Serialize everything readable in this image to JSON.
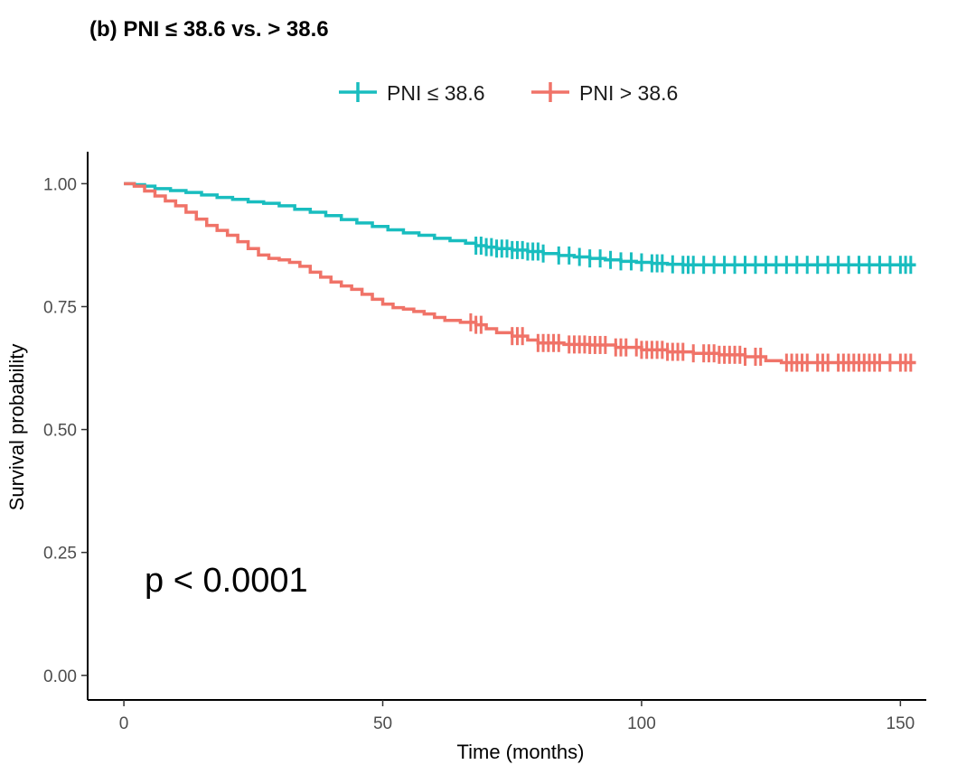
{
  "chart_data": {
    "type": "line",
    "title": "(b) PNI ≤ 38.6 vs. > 38.6",
    "xlabel": "Time (months)",
    "ylabel": "Survival probability",
    "xlim": [
      -7,
      155
    ],
    "ylim": [
      -0.05,
      1.065
    ],
    "x_ticks": [
      "0",
      "50",
      "100",
      "150"
    ],
    "x_tick_values": [
      0,
      50,
      100,
      150
    ],
    "y_ticks": [
      "0.00",
      "0.25",
      "0.50",
      "0.75",
      "1.00"
    ],
    "y_tick_values": [
      0,
      0.25,
      0.5,
      0.75,
      1.0
    ],
    "grid": false,
    "legend_position": "top",
    "annotation": "p < 0.0001",
    "series": [
      {
        "name": "PNI ≤ 38.6",
        "color": "#19BDBF",
        "step": [
          [
            0,
            1.0
          ],
          [
            2,
            0.998
          ],
          [
            4,
            0.995
          ],
          [
            6,
            0.99
          ],
          [
            9,
            0.986
          ],
          [
            12,
            0.982
          ],
          [
            15,
            0.977
          ],
          [
            18,
            0.972
          ],
          [
            21,
            0.968
          ],
          [
            24,
            0.963
          ],
          [
            27,
            0.96
          ],
          [
            30,
            0.955
          ],
          [
            33,
            0.948
          ],
          [
            36,
            0.942
          ],
          [
            39,
            0.935
          ],
          [
            42,
            0.927
          ],
          [
            45,
            0.92
          ],
          [
            48,
            0.913
          ],
          [
            51,
            0.906
          ],
          [
            54,
            0.9
          ],
          [
            57,
            0.895
          ],
          [
            60,
            0.889
          ],
          [
            63,
            0.884
          ],
          [
            66,
            0.879
          ],
          [
            68,
            0.874
          ],
          [
            70,
            0.871
          ],
          [
            72,
            0.868
          ],
          [
            75,
            0.865
          ],
          [
            78,
            0.862
          ],
          [
            81,
            0.858
          ],
          [
            84,
            0.854
          ],
          [
            87,
            0.851
          ],
          [
            90,
            0.848
          ],
          [
            93,
            0.845
          ],
          [
            96,
            0.842
          ],
          [
            99,
            0.84
          ],
          [
            102,
            0.838
          ],
          [
            105,
            0.836
          ],
          [
            108,
            0.835
          ],
          [
            112,
            0.835
          ],
          [
            153,
            0.835
          ]
        ],
        "censors": [
          68,
          69,
          70,
          71,
          72,
          73,
          74,
          75,
          76,
          77,
          78,
          79,
          80,
          81,
          84,
          86,
          88,
          90,
          92,
          94,
          96,
          98,
          100,
          102,
          103,
          104,
          106,
          108,
          109,
          110,
          112,
          114,
          116,
          118,
          120,
          122,
          124,
          126,
          128,
          130,
          132,
          134,
          136,
          138,
          140,
          142,
          144,
          146,
          148,
          150,
          151,
          152
        ]
      },
      {
        "name": "PNI > 38.6",
        "color": "#F07368",
        "step": [
          [
            0,
            1.0
          ],
          [
            2,
            0.995
          ],
          [
            4,
            0.985
          ],
          [
            6,
            0.975
          ],
          [
            8,
            0.965
          ],
          [
            10,
            0.955
          ],
          [
            12,
            0.942
          ],
          [
            14,
            0.928
          ],
          [
            16,
            0.915
          ],
          [
            18,
            0.905
          ],
          [
            20,
            0.895
          ],
          [
            22,
            0.882
          ],
          [
            24,
            0.868
          ],
          [
            26,
            0.855
          ],
          [
            28,
            0.848
          ],
          [
            30,
            0.845
          ],
          [
            32,
            0.84
          ],
          [
            34,
            0.832
          ],
          [
            36,
            0.82
          ],
          [
            38,
            0.81
          ],
          [
            40,
            0.8
          ],
          [
            42,
            0.792
          ],
          [
            44,
            0.785
          ],
          [
            46,
            0.775
          ],
          [
            48,
            0.765
          ],
          [
            50,
            0.755
          ],
          [
            52,
            0.748
          ],
          [
            54,
            0.745
          ],
          [
            56,
            0.74
          ],
          [
            58,
            0.735
          ],
          [
            60,
            0.728
          ],
          [
            62,
            0.722
          ],
          [
            65,
            0.718
          ],
          [
            68,
            0.713
          ],
          [
            70,
            0.705
          ],
          [
            72,
            0.697
          ],
          [
            75,
            0.69
          ],
          [
            78,
            0.682
          ],
          [
            80,
            0.676
          ],
          [
            85,
            0.673
          ],
          [
            90,
            0.672
          ],
          [
            95,
            0.667
          ],
          [
            100,
            0.662
          ],
          [
            105,
            0.658
          ],
          [
            110,
            0.655
          ],
          [
            115,
            0.652
          ],
          [
            120,
            0.648
          ],
          [
            124,
            0.64
          ],
          [
            127,
            0.636
          ],
          [
            153,
            0.636
          ]
        ],
        "censors": [
          67,
          68,
          69,
          75,
          76,
          77,
          80,
          81,
          82,
          83,
          84,
          86,
          87,
          88,
          89,
          90,
          91,
          92,
          93,
          95,
          96,
          97,
          99,
          100,
          101,
          102,
          103,
          104,
          105,
          106,
          107,
          108,
          110,
          112,
          113,
          114,
          115,
          116,
          117,
          118,
          119,
          120,
          122,
          123,
          128,
          129,
          130,
          131,
          132,
          134,
          135,
          136,
          138,
          139,
          140,
          141,
          142,
          143,
          144,
          145,
          146,
          148,
          150,
          151,
          152
        ]
      }
    ]
  }
}
